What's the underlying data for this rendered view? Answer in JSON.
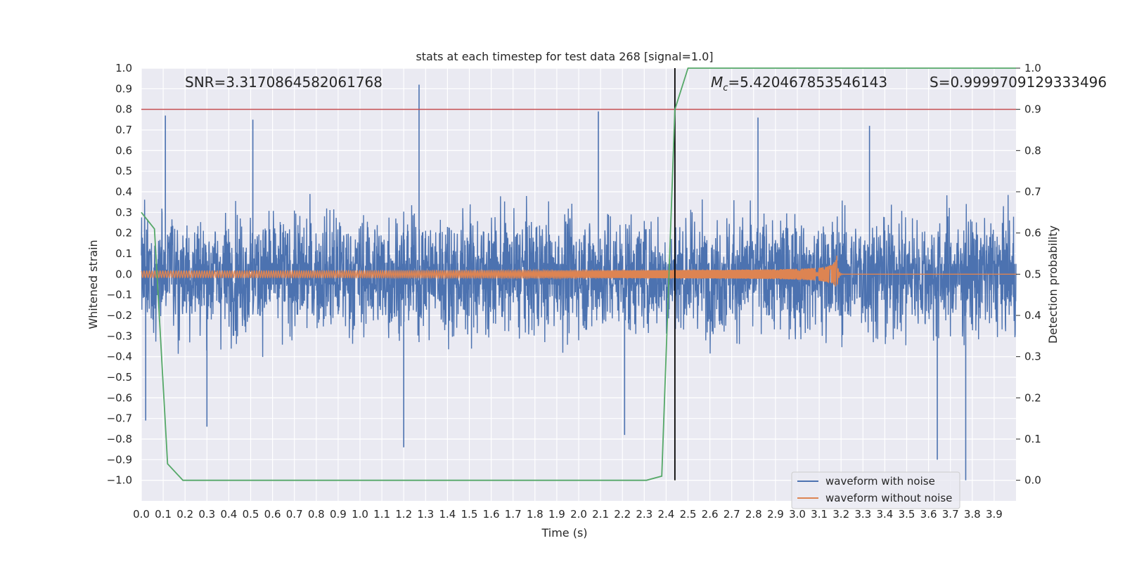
{
  "chart_data": {
    "type": "line",
    "title": "stats at each timestep for test data 268 [signal=1.0]",
    "xlabel": "Time (s)",
    "ylabel": "Whitened strain",
    "y2label": "Detection probability",
    "xlim": [
      0.0,
      4.0
    ],
    "ylim": [
      -1.1,
      1.0
    ],
    "y2lim": [
      -0.05,
      1.0
    ],
    "x_ticks": [
      "0.0",
      "0.1",
      "0.2",
      "0.3",
      "0.4",
      "0.5",
      "0.6",
      "0.7",
      "0.8",
      "0.9",
      "1.0",
      "1.1",
      "1.2",
      "1.3",
      "1.4",
      "1.5",
      "1.6",
      "1.7",
      "1.8",
      "1.9",
      "2.0",
      "2.1",
      "2.2",
      "2.3",
      "2.4",
      "2.5",
      "2.6",
      "2.7",
      "2.8",
      "2.9",
      "3.0",
      "3.1",
      "3.2",
      "3.3",
      "3.4",
      "3.5",
      "3.6",
      "3.7",
      "3.8",
      "3.9"
    ],
    "y_ticks": [
      "1.0",
      "0.9",
      "0.8",
      "0.7",
      "0.6",
      "0.5",
      "0.4",
      "0.3",
      "0.2",
      "0.1",
      "0.0",
      "−0.1",
      "−0.2",
      "−0.3",
      "−0.4",
      "−0.5",
      "−0.6",
      "−0.7",
      "−0.8",
      "−0.9",
      "−1.0"
    ],
    "y2_ticks": [
      "1.0",
      "0.9",
      "0.8",
      "0.7",
      "0.6",
      "0.5",
      "0.4",
      "0.3",
      "0.2",
      "0.1",
      "0.0"
    ],
    "grid": true,
    "legend_position": "lower-right",
    "annotations": {
      "snr": "SNR=3.3170864582061768",
      "mc_symbol": "M",
      "mc_subscript": "c",
      "mc_value": "=5.420467853546143",
      "s": "S=0.9999709129333496"
    },
    "threshold_line": {
      "axis": "y2",
      "value": 0.9,
      "color": "#c44e52"
    },
    "vertical_marker": {
      "x": 2.44,
      "color": "#000000"
    },
    "series": [
      {
        "name": "waveform with noise",
        "axis": "y",
        "color": "#4c72b0",
        "style": "dense noise, amplitude mostly within ±0.5, spikes up to 0.92",
        "peaks": [
          {
            "x": 0.11,
            "y": 0.77
          },
          {
            "x": 0.51,
            "y": 0.75
          },
          {
            "x": 1.27,
            "y": 0.92
          },
          {
            "x": 2.09,
            "y": 0.79
          },
          {
            "x": 2.82,
            "y": 0.76
          },
          {
            "x": 3.33,
            "y": 0.72
          },
          {
            "x": 0.02,
            "y": -0.71
          },
          {
            "x": 0.3,
            "y": -0.74
          },
          {
            "x": 1.2,
            "y": -0.84
          },
          {
            "x": 2.21,
            "y": -0.78
          },
          {
            "x": 3.64,
            "y": -0.9
          },
          {
            "x": 3.77,
            "y": -1.0
          }
        ]
      },
      {
        "name": "waveform without noise",
        "axis": "y",
        "color": "#dd8452",
        "style": "chirp signal, oscillation frequency increasing, merger near x=3.18 with amplitude ~0.09, flat after",
        "merger_x": 3.18,
        "merger_amplitude": 0.09
      },
      {
        "axis": "y2",
        "color": "#55a868",
        "x": [
          0.0,
          0.06,
          0.12,
          0.19,
          2.31,
          2.38,
          2.44,
          2.5,
          4.0
        ],
        "y": [
          0.65,
          0.61,
          0.04,
          0.0,
          0.0,
          0.01,
          0.9,
          1.0,
          1.0
        ]
      }
    ]
  }
}
